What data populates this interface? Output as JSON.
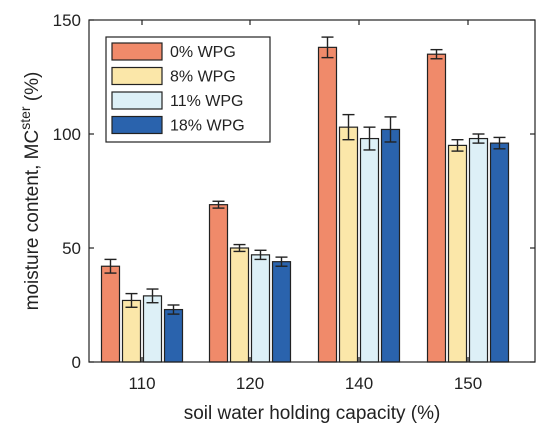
{
  "chart_data": {
    "type": "bar",
    "xlabel": "soil water holding capacity (%)",
    "ylabel": {
      "main": "moisture content, MC",
      "superscript": "ster",
      "suffix": " (%)"
    },
    "ylim": [
      0,
      150
    ],
    "yticks": [
      0,
      50,
      100,
      150
    ],
    "categories": [
      "110",
      "120",
      "140",
      "150"
    ],
    "legend_position": "top-left",
    "grid": false,
    "series": [
      {
        "name": "0% WPG",
        "color": "#F08A6A",
        "values": [
          42,
          69,
          138,
          135
        ],
        "errors": [
          3,
          1.5,
          4.5,
          2
        ]
      },
      {
        "name": "8% WPG",
        "color": "#FBE7A9",
        "values": [
          27,
          50,
          103,
          95
        ],
        "errors": [
          3,
          1.5,
          5.5,
          2.5
        ]
      },
      {
        "name": "11% WPG",
        "color": "#DDF0F7",
        "values": [
          29,
          47,
          98,
          98
        ],
        "errors": [
          3,
          2,
          5,
          2
        ]
      },
      {
        "name": "18% WPG",
        "color": "#2A63AD",
        "values": [
          23,
          44,
          102,
          96
        ],
        "errors": [
          2,
          2,
          5.5,
          2.5
        ]
      }
    ]
  }
}
